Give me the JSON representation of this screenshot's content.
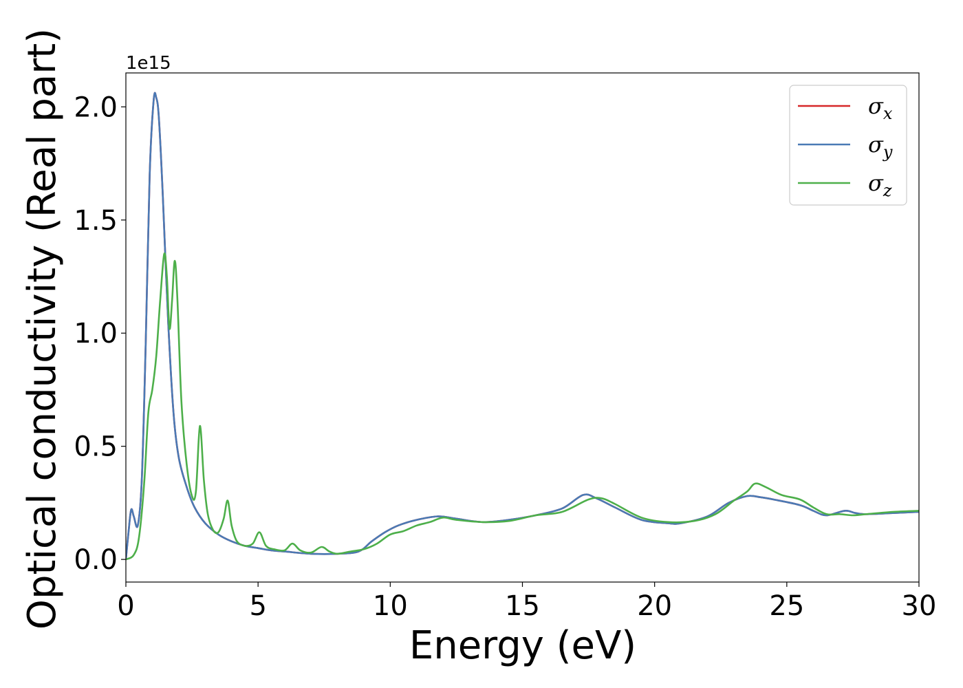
{
  "chart_data": {
    "type": "line",
    "xlabel": "Energy (eV)",
    "ylabel": "Optical conductivity (Real part)",
    "offset_text": "1e15",
    "xlim": [
      0,
      30
    ],
    "ylim": [
      -0.1,
      2.15
    ],
    "xticks": [
      0,
      5,
      10,
      15,
      20,
      25,
      30
    ],
    "xtick_labels": [
      "0",
      "5",
      "10",
      "15",
      "20",
      "25",
      "30"
    ],
    "yticks": [
      0.0,
      0.5,
      1.0,
      1.5,
      2.0
    ],
    "ytick_labels": [
      "0.0",
      "0.5",
      "1.0",
      "1.5",
      "2.0"
    ],
    "legend_position": "top-right",
    "series": [
      {
        "name": "σx",
        "symbol": "σ",
        "subscript": "x",
        "color": "#d62728",
        "x": [
          0,
          0.1,
          0.2,
          0.3,
          0.45,
          0.6,
          0.75,
          0.9,
          1.05,
          1.15,
          1.25,
          1.4,
          1.6,
          1.8,
          2.0,
          2.3,
          2.6,
          3.0,
          3.5,
          4.0,
          4.5,
          5.0,
          5.5,
          6.0,
          7.0,
          8.0,
          8.8,
          9.3,
          9.8,
          10.3,
          11.0,
          11.8,
          12.5,
          13.5,
          14.5,
          15.5,
          16.5,
          17.3,
          17.8,
          18.5,
          19.5,
          20.5,
          21.0,
          22.0,
          22.8,
          23.5,
          24.0,
          24.5,
          25.5,
          26.0,
          26.5,
          27.2,
          27.6,
          28.0,
          29.0,
          30.0
        ],
        "y": [
          0.0,
          0.12,
          0.22,
          0.19,
          0.15,
          0.35,
          0.95,
          1.7,
          2.03,
          2.04,
          1.95,
          1.6,
          1.05,
          0.65,
          0.45,
          0.32,
          0.23,
          0.16,
          0.11,
          0.08,
          0.06,
          0.05,
          0.04,
          0.035,
          0.025,
          0.025,
          0.035,
          0.08,
          0.12,
          0.15,
          0.175,
          0.19,
          0.18,
          0.165,
          0.175,
          0.195,
          0.225,
          0.285,
          0.27,
          0.23,
          0.175,
          0.16,
          0.16,
          0.19,
          0.25,
          0.28,
          0.275,
          0.265,
          0.24,
          0.215,
          0.195,
          0.215,
          0.205,
          0.2,
          0.205,
          0.21
        ]
      },
      {
        "name": "σy",
        "symbol": "σ",
        "subscript": "y",
        "color": "#4a7ab5",
        "x": [
          0,
          0.1,
          0.2,
          0.3,
          0.45,
          0.6,
          0.75,
          0.9,
          1.05,
          1.15,
          1.25,
          1.4,
          1.6,
          1.8,
          2.0,
          2.3,
          2.6,
          3.0,
          3.5,
          4.0,
          4.5,
          5.0,
          5.5,
          6.0,
          7.0,
          8.0,
          8.8,
          9.3,
          9.8,
          10.3,
          11.0,
          11.8,
          12.5,
          13.5,
          14.5,
          15.5,
          16.5,
          17.3,
          17.8,
          18.5,
          19.5,
          20.5,
          21.0,
          22.0,
          22.8,
          23.5,
          24.0,
          24.5,
          25.5,
          26.0,
          26.5,
          27.2,
          27.6,
          28.0,
          29.0,
          30.0
        ],
        "y": [
          0.0,
          0.12,
          0.22,
          0.19,
          0.15,
          0.35,
          0.95,
          1.7,
          2.03,
          2.04,
          1.95,
          1.6,
          1.05,
          0.65,
          0.45,
          0.32,
          0.23,
          0.16,
          0.11,
          0.08,
          0.06,
          0.05,
          0.04,
          0.035,
          0.025,
          0.025,
          0.035,
          0.08,
          0.12,
          0.15,
          0.175,
          0.19,
          0.18,
          0.165,
          0.175,
          0.195,
          0.225,
          0.285,
          0.27,
          0.23,
          0.175,
          0.16,
          0.16,
          0.19,
          0.25,
          0.28,
          0.275,
          0.265,
          0.24,
          0.215,
          0.195,
          0.215,
          0.205,
          0.2,
          0.205,
          0.21
        ]
      },
      {
        "name": "σz",
        "symbol": "σ",
        "subscript": "z",
        "color": "#4daf4a",
        "x": [
          0,
          0.3,
          0.5,
          0.7,
          0.85,
          1.0,
          1.15,
          1.3,
          1.45,
          1.55,
          1.65,
          1.75,
          1.85,
          1.95,
          2.1,
          2.3,
          2.5,
          2.65,
          2.8,
          2.95,
          3.1,
          3.3,
          3.5,
          3.7,
          3.85,
          4.0,
          4.2,
          4.5,
          4.8,
          5.05,
          5.3,
          5.6,
          6.0,
          6.3,
          6.6,
          7.0,
          7.4,
          7.7,
          8.0,
          8.5,
          9.0,
          9.5,
          10.0,
          10.5,
          11.0,
          11.5,
          12.0,
          12.5,
          13.5,
          14.5,
          15.5,
          16.5,
          17.5,
          18.0,
          18.5,
          19.5,
          20.5,
          21.5,
          22.3,
          23.0,
          23.5,
          23.8,
          24.2,
          24.8,
          25.5,
          26.0,
          26.5,
          27.0,
          27.5,
          28.0,
          29.0,
          30.0
        ],
        "y": [
          0.0,
          0.02,
          0.1,
          0.35,
          0.65,
          0.75,
          0.9,
          1.15,
          1.35,
          1.25,
          1.02,
          1.15,
          1.32,
          1.15,
          0.7,
          0.42,
          0.28,
          0.3,
          0.59,
          0.35,
          0.2,
          0.13,
          0.12,
          0.18,
          0.26,
          0.15,
          0.08,
          0.06,
          0.07,
          0.12,
          0.06,
          0.045,
          0.04,
          0.07,
          0.04,
          0.03,
          0.055,
          0.035,
          0.025,
          0.035,
          0.045,
          0.07,
          0.11,
          0.125,
          0.15,
          0.165,
          0.185,
          0.175,
          0.165,
          0.17,
          0.195,
          0.21,
          0.265,
          0.27,
          0.245,
          0.185,
          0.165,
          0.17,
          0.2,
          0.26,
          0.3,
          0.335,
          0.32,
          0.285,
          0.265,
          0.23,
          0.2,
          0.2,
          0.195,
          0.2,
          0.21,
          0.215
        ]
      }
    ]
  }
}
